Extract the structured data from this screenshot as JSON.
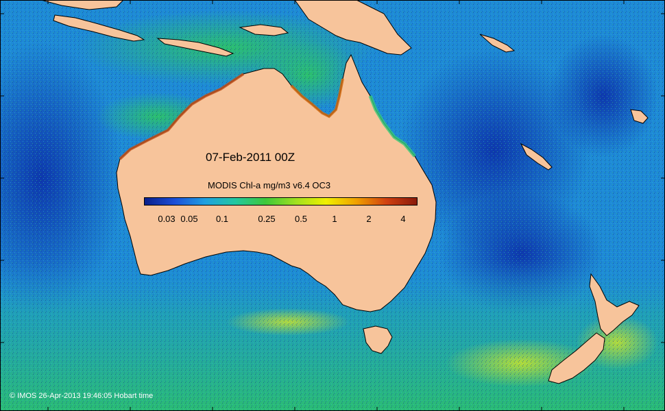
{
  "map": {
    "date_label": "07-Feb-2011 00Z",
    "colorbar_title": "MODIS Chl-a mg/m3 v6.4 OC3",
    "colorbar_ticks": [
      "0.03",
      "0.05",
      "0.1",
      "0.25",
      "0.5",
      "1",
      "2",
      "4"
    ],
    "credit": "© IMOS 26-Apr-2013 19:46:05 Hobart time"
  },
  "colors": {
    "land": "#f7c49b",
    "ocean_deep": "#1a4fc8",
    "ocean_mid": "#1e90d8",
    "coast_high": "#c0501a",
    "outline": "#000000"
  },
  "colorbar_stops": [
    "#0a1f8a",
    "#1c4fd8",
    "#1fa0e0",
    "#22c8a0",
    "#3ec83a",
    "#a0e020",
    "#f0f000",
    "#f0a000",
    "#d04010",
    "#8a1a0a"
  ]
}
